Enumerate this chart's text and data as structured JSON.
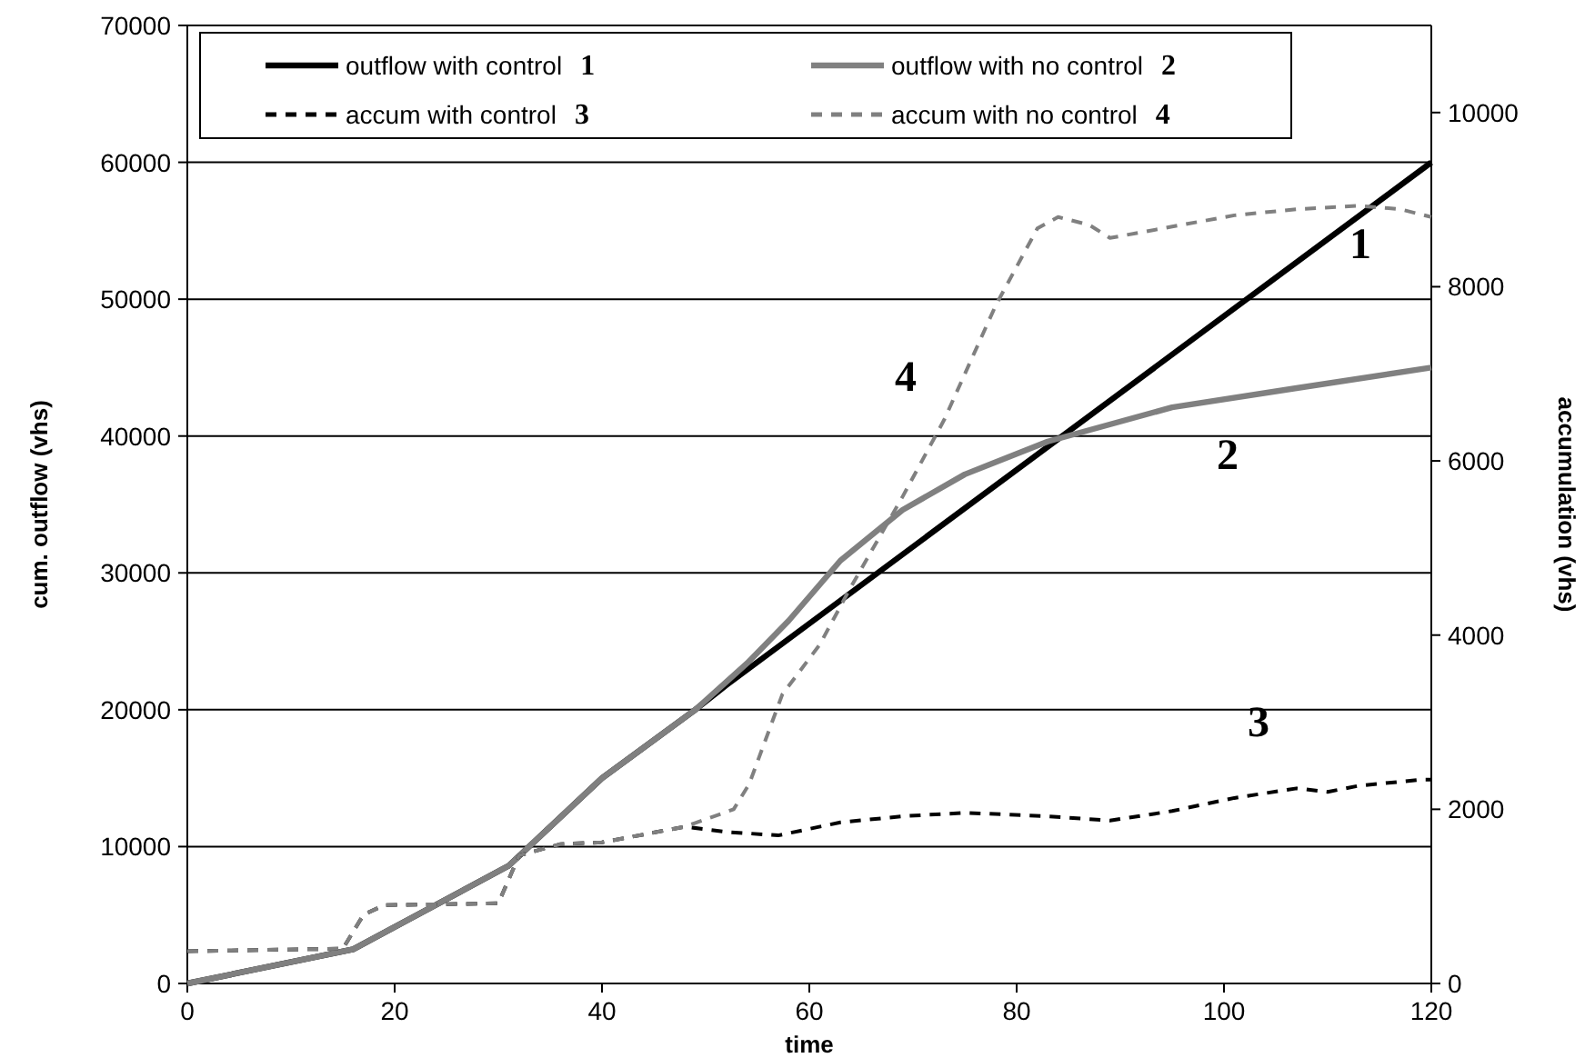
{
  "chart_data": {
    "type": "line",
    "xlabel": "time",
    "ylabel": "cum. outflow (vhs)",
    "y2label": "accumulation (vhs)",
    "xlim": [
      0,
      120
    ],
    "xticks": [
      0,
      20,
      40,
      60,
      80,
      100,
      120
    ],
    "ylim": [
      0,
      70000
    ],
    "yticks": [
      0,
      10000,
      20000,
      30000,
      40000,
      50000,
      60000,
      70000
    ],
    "y2lim": [
      0,
      11000
    ],
    "y2ticks": [
      0,
      2000,
      4000,
      6000,
      8000,
      10000
    ],
    "grid": "y",
    "legend": "top",
    "series": [
      {
        "name": "outflow with control 1",
        "color": "#000000",
        "line_style": "solid",
        "x": [
          0,
          16,
          31,
          40,
          49,
          52,
          120
        ],
        "values": [
          0,
          2500,
          8600,
          15000,
          20000,
          21800,
          60000
        ]
      },
      {
        "name": "outflow with no control 2",
        "color": "#808080",
        "line_style": "solid",
        "x": [
          0,
          16,
          31,
          40,
          49,
          54,
          58,
          63,
          69,
          75,
          83,
          95,
          107,
          120
        ],
        "values": [
          0,
          2500,
          8600,
          15000,
          20000,
          23400,
          26500,
          30900,
          34600,
          37200,
          39600,
          42100,
          43500,
          45000
        ]
      },
      {
        "name": "accum with control 3",
        "color": "#000000",
        "line_style": "dashed",
        "axis": "y2",
        "x": [
          0,
          15,
          17,
          19,
          30,
          32,
          36,
          40,
          48,
          52,
          57,
          63,
          69,
          75,
          83,
          89,
          95,
          101,
          107,
          110,
          113,
          119,
          120
        ],
        "values": [
          370,
          400,
          790,
          900,
          920,
          1470,
          1600,
          1620,
          1800,
          1740,
          1700,
          1850,
          1920,
          1960,
          1920,
          1870,
          1980,
          2130,
          2240,
          2200,
          2270,
          2340,
          2340
        ]
      },
      {
        "name": "accum with no control 4",
        "color": "#808080",
        "line_style": "dashed",
        "axis": "y2",
        "x": [
          0,
          15,
          17,
          19,
          30,
          32,
          36,
          40,
          48,
          52.7,
          54.2,
          57.4,
          61,
          64,
          69,
          73,
          78,
          82,
          84,
          87,
          89,
          95,
          101,
          107,
          113,
          117,
          120
        ],
        "values": [
          370,
          400,
          790,
          900,
          920,
          1470,
          1600,
          1620,
          1800,
          2000,
          2290,
          3320,
          3890,
          4550,
          5590,
          6470,
          7790,
          8670,
          8800,
          8710,
          8560,
          8690,
          8820,
          8890,
          8930,
          8890,
          8800
        ]
      }
    ],
    "annotations": [
      "1",
      "2",
      "3",
      "4"
    ]
  }
}
